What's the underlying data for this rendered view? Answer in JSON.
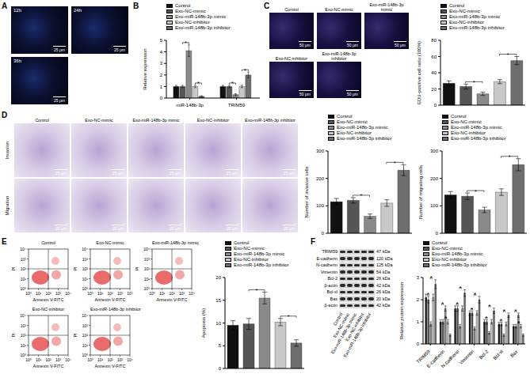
{
  "panel_labels": [
    "A",
    "B",
    "C",
    "D",
    "E",
    "F"
  ],
  "chart_data": [
    {
      "type": "bar",
      "y_label": "Relative expression",
      "categories": [
        "miR-148b-3p",
        "TRIM59"
      ],
      "series": [
        {
          "name": "Control",
          "color": "#111111",
          "values": [
            1.0,
            1.0
          ],
          "errors": [
            0.1,
            0.1
          ]
        },
        {
          "name": "Exo-NC-mimic",
          "color": "#555555",
          "values": [
            1.0,
            1.0
          ],
          "errors": [
            0.1,
            0.1
          ]
        },
        {
          "name": "Exo-miR-148b-3p mimic",
          "color": "#8a8a8a",
          "values": [
            4.1,
            0.3
          ],
          "errors": [
            0.5,
            0.08
          ]
        },
        {
          "name": "Exo-NC-inhibitor",
          "color": "#c8c8c8",
          "values": [
            1.0,
            1.0
          ],
          "errors": [
            0.1,
            0.1
          ]
        },
        {
          "name": "Exo-miR-148b-3p inhibitor",
          "color": "#6e6e6e",
          "values": [
            0.15,
            2.0
          ],
          "errors": [
            0.05,
            0.25
          ]
        }
      ],
      "ylim": [
        0,
        5
      ],
      "yticks": [
        0,
        1,
        2,
        3,
        4,
        5
      ],
      "grid": false,
      "legend": "top",
      "annotations": [
        {
          "text": "*",
          "pair": [
            1,
            2
          ]
        },
        {
          "text": "*",
          "pair": [
            3,
            4
          ]
        }
      ]
    },
    {
      "type": "bar",
      "y_label": "EDU-positive cell ratio (100%)",
      "categories": [
        "Control",
        "Exo-NC-mimic",
        "Exo-miR-148b-3p mimic",
        "Exo-NC-inhibitor",
        "Exo-miR-148b-3p inhibitor"
      ],
      "values": [
        27,
        23,
        14,
        29,
        55
      ],
      "errors": [
        3,
        3,
        2,
        2.5,
        5
      ],
      "colors": [
        "#111111",
        "#555555",
        "#8a8a8a",
        "#c8c8c8",
        "#6e6e6e"
      ],
      "ylim": [
        0,
        80
      ],
      "yticks": [
        0,
        20,
        40,
        60,
        80
      ],
      "grid": false,
      "legend": "top",
      "tick_labels": "y",
      "annotations": [
        {
          "text": "*",
          "pair": [
            1,
            2
          ]
        },
        {
          "text": "*",
          "pair": [
            3,
            4
          ]
        }
      ]
    },
    {
      "type": "bar",
      "y_label": "Number of invasive cells",
      "categories": [
        "Control",
        "Exo-NC-mimic",
        "Exo-miR-148b-3p mimic",
        "Exo-NC-inhibitor",
        "Exo-miR-148b-3p inhibitor"
      ],
      "values": [
        115,
        120,
        62,
        110,
        230
      ],
      "errors": [
        12,
        10,
        8,
        12,
        20
      ],
      "colors": [
        "#111111",
        "#555555",
        "#8a8a8a",
        "#c8c8c8",
        "#6e6e6e"
      ],
      "ylim": [
        0,
        300
      ],
      "yticks": [
        0,
        100,
        200,
        300
      ],
      "grid": false,
      "legend": "top",
      "tick_labels": "y",
      "annotations": [
        {
          "text": "*",
          "pair": [
            1,
            2
          ]
        },
        {
          "text": "*",
          "pair": [
            3,
            4
          ]
        }
      ]
    },
    {
      "type": "bar",
      "y_label": "Number of migrating cells",
      "categories": [
        "Control",
        "Exo-NC-mimic",
        "Exo-miR-148b-3p mimic",
        "Exo-NC-inhibitor",
        "Exo-miR-148b-3p inhibitor"
      ],
      "values": [
        140,
        135,
        85,
        150,
        250
      ],
      "errors": [
        12,
        12,
        10,
        12,
        22
      ],
      "colors": [
        "#111111",
        "#555555",
        "#8a8a8a",
        "#c8c8c8",
        "#6e6e6e"
      ],
      "ylim": [
        0,
        300
      ],
      "yticks": [
        0,
        100,
        200,
        300
      ],
      "grid": false,
      "legend": "top",
      "tick_labels": "y",
      "annotations": [
        {
          "text": "*",
          "pair": [
            1,
            2
          ]
        },
        {
          "text": "*",
          "pair": [
            3,
            4
          ]
        }
      ]
    },
    {
      "type": "bar",
      "y_label": "Apoptosis (%)",
      "categories": [
        "Control",
        "Exo-NC-mimic",
        "Exo-miR-148b-3p mimic",
        "Exo-NC-inhibitor",
        "Exo-miR-148b-3p inhibitor"
      ],
      "values": [
        9.5,
        9.8,
        15.5,
        10.2,
        5.6
      ],
      "errors": [
        1,
        1.2,
        1.3,
        0.8,
        0.7
      ],
      "colors": [
        "#111111",
        "#555555",
        "#8a8a8a",
        "#c8c8c8",
        "#6e6e6e"
      ],
      "ylim": [
        0,
        20
      ],
      "yticks": [
        0,
        5,
        10,
        15,
        20
      ],
      "grid": false,
      "legend": "top",
      "tick_labels": "y",
      "annotations": [
        {
          "text": "*",
          "pair": [
            1,
            2
          ]
        },
        {
          "text": "*",
          "pair": [
            3,
            4
          ]
        }
      ]
    },
    {
      "type": "bar",
      "y_label": "Relative protein expression",
      "categories": [
        "TRIM59",
        "E-cadherin",
        "N-cadherin",
        "Vimentin",
        "Bcl-2",
        "Bcl-xl",
        "Bax"
      ],
      "series": [
        {
          "name": "Control",
          "color": "#111111",
          "values": [
            2.1,
            1.0,
            1.6,
            1.4,
            1.0,
            0.9,
            0.8
          ],
          "errors": [
            0.15,
            0.1,
            0.12,
            0.1,
            0.1,
            0.08,
            0.08
          ]
        },
        {
          "name": "Exo-NC-mimic",
          "color": "#555555",
          "values": [
            2.0,
            1.0,
            1.6,
            1.4,
            1.0,
            0.9,
            0.8
          ],
          "errors": [
            0.15,
            0.1,
            0.12,
            0.1,
            0.1,
            0.08,
            0.08
          ]
        },
        {
          "name": "Exo-miR-148b-3p mimic",
          "color": "#8a8a8a",
          "values": [
            0.9,
            1.6,
            0.8,
            0.7,
            0.5,
            0.4,
            1.3
          ],
          "errors": [
            0.1,
            0.12,
            0.08,
            0.07,
            0.06,
            0.05,
            0.1
          ]
        },
        {
          "name": "Exo-NC-inhibitor",
          "color": "#c8c8c8",
          "values": [
            2.1,
            1.0,
            1.6,
            1.4,
            1.0,
            0.9,
            0.8
          ],
          "errors": [
            0.15,
            0.1,
            0.12,
            0.1,
            0.1,
            0.08,
            0.08
          ]
        },
        {
          "name": "Exo-miR-148b-3p inhibitor",
          "color": "#6e6e6e",
          "values": [
            2.7,
            0.4,
            2.3,
            2.0,
            1.5,
            1.3,
            0.4
          ],
          "errors": [
            0.2,
            0.05,
            0.15,
            0.15,
            0.12,
            0.1,
            0.05
          ]
        }
      ],
      "ylim": [
        0,
        3
      ],
      "yticks": [
        0,
        1,
        2,
        3
      ],
      "grid": false,
      "legend": "top",
      "annotations": [
        {
          "text": "*",
          "pair": [
            1,
            2
          ]
        },
        {
          "text": "*",
          "pair": [
            3,
            4
          ]
        }
      ]
    }
  ],
  "micrographs": {
    "A": {
      "labels": [
        "12h",
        "24h",
        "36h"
      ],
      "scale_bar": "25 μm"
    },
    "C": {
      "labels": [
        "Control",
        "Exo-NC-mimic",
        "Exo-miR-148b-3p mimic",
        "Exo-NC-inhibitor",
        "Exo-miR-148b-3p inhibitor"
      ],
      "scale_bar": "50 μm"
    },
    "D": {
      "rows": [
        "Invasion",
        "Migration"
      ],
      "labels": [
        "Control",
        "Exo-NC-mimic",
        "Exo-miR-148b-3p mimic",
        "Exo-NC-inhibitor",
        "Exo-miR-148b-3p inhibitor"
      ],
      "scale_bar": "25 μm"
    }
  },
  "flow_cytometry": {
    "labels": [
      "Control",
      "Exo-NC-mimic",
      "Exo-miR-148b-3p mimic",
      "Exo-NC-inhibitor",
      "Exo-miR-148b-3p inhibitor"
    ],
    "x_label": "Annexin V-FITC",
    "y_label": "PI",
    "log": true,
    "xlim": [
      1,
      10000
    ],
    "ylim": [
      1,
      10000
    ],
    "xticks": [
      {
        "value": 1,
        "label": "10⁰"
      },
      {
        "value": 10,
        "label": "10¹"
      },
      {
        "value": 100,
        "label": "10²"
      },
      {
        "value": 1000,
        "label": "10³"
      },
      {
        "value": 10000,
        "label": "10⁴"
      }
    ],
    "yticks": [
      {
        "value": 1,
        "label": "10⁰"
      },
      {
        "value": 10,
        "label": "10¹"
      },
      {
        "value": 100,
        "label": "10²"
      },
      {
        "value": 1000,
        "label": "10³"
      },
      {
        "value": 10000,
        "label": "10⁴"
      }
    ]
  },
  "western_blot": {
    "rows": [
      {
        "name": "TRIM59",
        "size": "47 kDa"
      },
      {
        "name": "E-cadherin",
        "size": "120 kDa"
      },
      {
        "name": "N-cadherin",
        "size": "125 kDa"
      },
      {
        "name": "Vimentin",
        "size": "54 kDa"
      },
      {
        "name": "Bcl-2",
        "size": "26 kDa"
      },
      {
        "name": "β-actin",
        "size": "42 kDa"
      },
      {
        "name": "Bcl-xl",
        "size": "26 kDa"
      },
      {
        "name": "Bax",
        "size": "20 kDa"
      },
      {
        "name": "β-actin",
        "size": "42 kDa"
      }
    ],
    "lanes": [
      "Control",
      "Exo-NC-mimic",
      "Exo-miR-148b-3p mimic",
      "Exo-NC-inhibitor",
      "Exo-miR-148b-3p inhibitor"
    ]
  }
}
